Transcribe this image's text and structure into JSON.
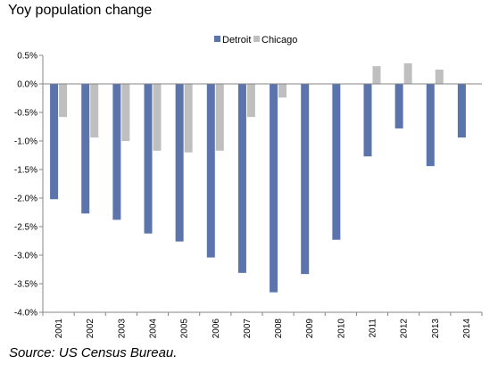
{
  "title": "Yoy population change",
  "source": "Source:  US Census Bureau.",
  "chart_data": {
    "type": "bar",
    "categories": [
      "2001",
      "2002",
      "2003",
      "2004",
      "2005",
      "2006",
      "2007",
      "2008",
      "2009",
      "2010",
      "2011",
      "2012",
      "2013",
      "2014"
    ],
    "series": [
      {
        "name": "Detroit",
        "color": "#5b74ab",
        "values": [
          -2.02,
          -2.27,
          -2.38,
          -2.62,
          -2.76,
          -3.04,
          -3.31,
          -3.65,
          -3.33,
          -2.73,
          -1.27,
          -0.78,
          -1.44,
          -0.94
        ]
      },
      {
        "name": "Chicago",
        "color": "#bfbfbf",
        "values": [
          -0.58,
          -0.94,
          -1.0,
          -1.17,
          -1.2,
          -1.17,
          -0.58,
          -0.24,
          0,
          0,
          0.31,
          0.36,
          0.25,
          0
        ]
      }
    ],
    "ylim": [
      -4.0,
      0.5
    ],
    "yticks": [
      "0.5%",
      "0.0%",
      "-0.5%",
      "-1.0%",
      "-1.5%",
      "-2.0%",
      "-2.5%",
      "-3.0%",
      "-3.5%",
      "-4.0%"
    ],
    "ytick_values": [
      0.5,
      0.0,
      -0.5,
      -1.0,
      -1.5,
      -2.0,
      -2.5,
      -3.0,
      -3.5,
      -4.0
    ],
    "xlabel": "",
    "ylabel": "",
    "grid": false,
    "legend_position": "top-center"
  }
}
